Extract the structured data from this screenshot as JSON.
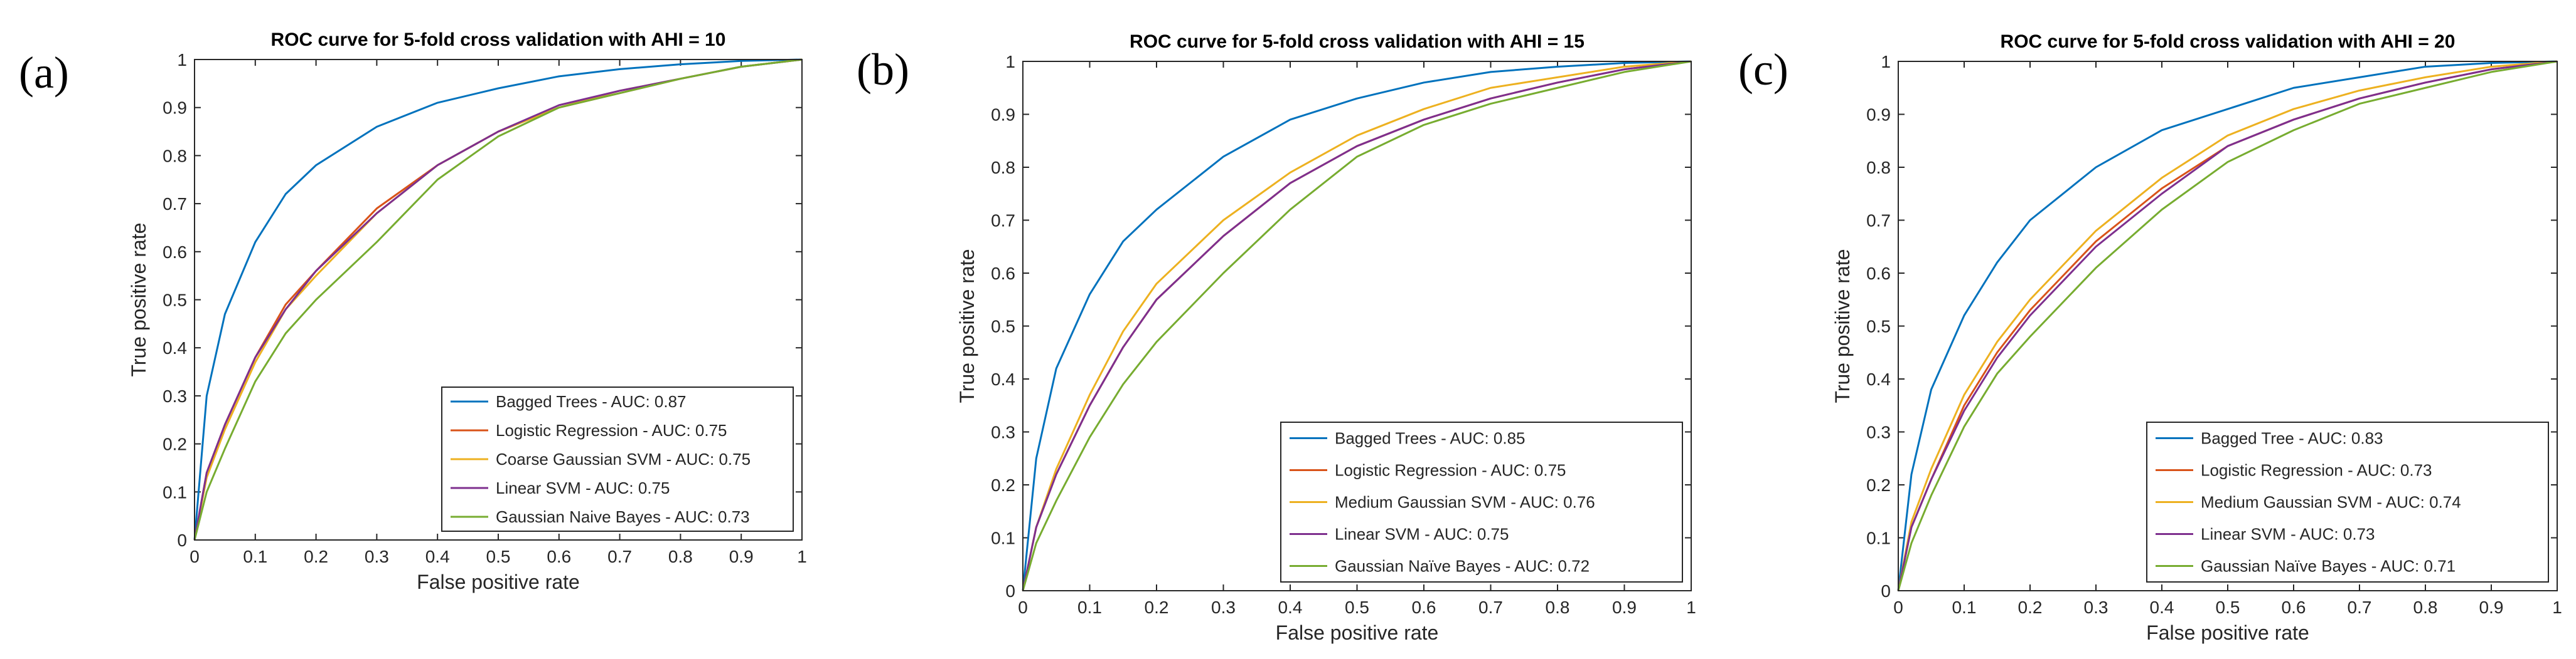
{
  "chart_data": [
    {
      "type": "line",
      "panel_label": "(a)",
      "title": "ROC curve for 5-fold cross validation with AHI = 10",
      "xlabel": "False positive rate",
      "ylabel": "True positive rate",
      "xlim": [
        0,
        1
      ],
      "ylim": [
        0,
        1
      ],
      "xticks": [
        "0",
        "0.1",
        "0.2",
        "0.3",
        "0.4",
        "0.5",
        "0.6",
        "0.7",
        "0.8",
        "0.9",
        "1"
      ],
      "yticks": [
        "0",
        "0.1",
        "0.2",
        "0.3",
        "0.4",
        "0.5",
        "0.6",
        "0.7",
        "0.8",
        "0.9",
        "1"
      ],
      "legend_position": "bottom-right",
      "x": [
        0,
        0.02,
        0.05,
        0.1,
        0.15,
        0.2,
        0.3,
        0.4,
        0.5,
        0.6,
        0.7,
        0.8,
        0.9,
        1.0
      ],
      "series": [
        {
          "name": "Bagged Trees - AUC: 0.87",
          "color": "#0072BD",
          "values": [
            0,
            0.3,
            0.47,
            0.62,
            0.72,
            0.78,
            0.86,
            0.91,
            0.94,
            0.965,
            0.98,
            0.99,
            0.997,
            1.0
          ]
        },
        {
          "name": "Logistic Regression - AUC: 0.75",
          "color": "#D95319",
          "values": [
            0,
            0.14,
            0.24,
            0.38,
            0.49,
            0.56,
            0.69,
            0.78,
            0.85,
            0.9,
            0.93,
            0.96,
            0.985,
            1.0
          ]
        },
        {
          "name": "Coarse Gaussian SVM - AUC: 0.75",
          "color": "#EDB120",
          "values": [
            0,
            0.13,
            0.23,
            0.37,
            0.48,
            0.55,
            0.68,
            0.78,
            0.85,
            0.9,
            0.935,
            0.96,
            0.985,
            1.0
          ]
        },
        {
          "name": "Linear SVM - AUC: 0.75",
          "color": "#7E2F8E",
          "values": [
            0,
            0.14,
            0.24,
            0.38,
            0.48,
            0.56,
            0.68,
            0.78,
            0.85,
            0.905,
            0.935,
            0.96,
            0.985,
            1.0
          ]
        },
        {
          "name": "Gaussian Naive Bayes - AUC: 0.73",
          "color": "#77AC30",
          "values": [
            0,
            0.1,
            0.19,
            0.33,
            0.43,
            0.5,
            0.62,
            0.75,
            0.84,
            0.9,
            0.93,
            0.96,
            0.985,
            1.0
          ]
        }
      ]
    },
    {
      "type": "line",
      "panel_label": "(b)",
      "title": "ROC curve for 5-fold cross validation with AHI = 15",
      "xlabel": "False positive rate",
      "ylabel": "True positive rate",
      "xlim": [
        0,
        1
      ],
      "ylim": [
        0,
        1
      ],
      "xticks": [
        "0",
        "0.1",
        "0.2",
        "0.3",
        "0.4",
        "0.5",
        "0.6",
        "0.7",
        "0.8",
        "0.9",
        "1"
      ],
      "yticks": [
        "0",
        "0.1",
        "0.2",
        "0.3",
        "0.4",
        "0.5",
        "0.6",
        "0.7",
        "0.8",
        "0.9",
        "1"
      ],
      "legend_position": "bottom-right",
      "x": [
        0,
        0.02,
        0.05,
        0.1,
        0.15,
        0.2,
        0.3,
        0.4,
        0.5,
        0.6,
        0.7,
        0.8,
        0.9,
        1.0
      ],
      "series": [
        {
          "name": "Bagged Trees - AUC: 0.85",
          "color": "#0072BD",
          "values": [
            0,
            0.25,
            0.42,
            0.56,
            0.66,
            0.72,
            0.82,
            0.89,
            0.93,
            0.96,
            0.98,
            0.99,
            0.997,
            1.0
          ]
        },
        {
          "name": "Logistic Regression - AUC: 0.75",
          "color": "#D95319",
          "values": [
            0,
            0.12,
            0.22,
            0.35,
            0.46,
            0.55,
            0.67,
            0.77,
            0.84,
            0.89,
            0.93,
            0.96,
            0.985,
            1.0
          ]
        },
        {
          "name": "Medium Gaussian SVM - AUC: 0.76",
          "color": "#EDB120",
          "values": [
            0,
            0.12,
            0.23,
            0.37,
            0.49,
            0.58,
            0.7,
            0.79,
            0.86,
            0.91,
            0.95,
            0.97,
            0.99,
            1.0
          ]
        },
        {
          "name": "Linear SVM - AUC: 0.75",
          "color": "#7E2F8E",
          "values": [
            0,
            0.12,
            0.22,
            0.35,
            0.46,
            0.55,
            0.67,
            0.77,
            0.84,
            0.89,
            0.93,
            0.96,
            0.985,
            1.0
          ]
        },
        {
          "name": "Gaussian Naïve Bayes - AUC: 0.72",
          "color": "#77AC30",
          "values": [
            0,
            0.09,
            0.17,
            0.29,
            0.39,
            0.47,
            0.6,
            0.72,
            0.82,
            0.88,
            0.92,
            0.95,
            0.98,
            1.0
          ]
        }
      ]
    },
    {
      "type": "line",
      "panel_label": "(c)",
      "title": "ROC curve for 5-fold cross validation with AHI = 20",
      "xlabel": "False positive rate",
      "ylabel": "True positive rate",
      "xlim": [
        0,
        1
      ],
      "ylim": [
        0,
        1
      ],
      "xticks": [
        "0",
        "0.1",
        "0.2",
        "0.3",
        "0.4",
        "0.5",
        "0.6",
        "0.7",
        "0.8",
        "0.9",
        "1"
      ],
      "yticks": [
        "0",
        "0.1",
        "0.2",
        "0.3",
        "0.4",
        "0.5",
        "0.6",
        "0.7",
        "0.8",
        "0.9",
        "1"
      ],
      "legend_position": "bottom-right",
      "x": [
        0,
        0.02,
        0.05,
        0.1,
        0.15,
        0.2,
        0.3,
        0.4,
        0.5,
        0.6,
        0.7,
        0.8,
        0.9,
        1.0
      ],
      "series": [
        {
          "name": "Bagged Tree - AUC: 0.83",
          "color": "#0072BD",
          "values": [
            0,
            0.22,
            0.38,
            0.52,
            0.62,
            0.7,
            0.8,
            0.87,
            0.91,
            0.95,
            0.97,
            0.99,
            0.997,
            1.0
          ]
        },
        {
          "name": "Logistic Regression - AUC: 0.73",
          "color": "#D95319",
          "values": [
            0,
            0.12,
            0.21,
            0.35,
            0.45,
            0.53,
            0.66,
            0.76,
            0.84,
            0.89,
            0.93,
            0.96,
            0.985,
            1.0
          ]
        },
        {
          "name": "Medium Gaussian SVM - AUC: 0.74",
          "color": "#EDB120",
          "values": [
            0,
            0.13,
            0.23,
            0.37,
            0.47,
            0.55,
            0.68,
            0.78,
            0.86,
            0.91,
            0.945,
            0.97,
            0.99,
            1.0
          ]
        },
        {
          "name": "Linear SVM - AUC: 0.73",
          "color": "#7E2F8E",
          "values": [
            0,
            0.12,
            0.21,
            0.34,
            0.44,
            0.52,
            0.65,
            0.75,
            0.84,
            0.89,
            0.93,
            0.96,
            0.985,
            1.0
          ]
        },
        {
          "name": "Gaussian Naïve Bayes - AUC: 0.71",
          "color": "#77AC30",
          "values": [
            0,
            0.09,
            0.18,
            0.31,
            0.41,
            0.48,
            0.61,
            0.72,
            0.81,
            0.87,
            0.92,
            0.95,
            0.98,
            1.0
          ]
        }
      ]
    }
  ]
}
